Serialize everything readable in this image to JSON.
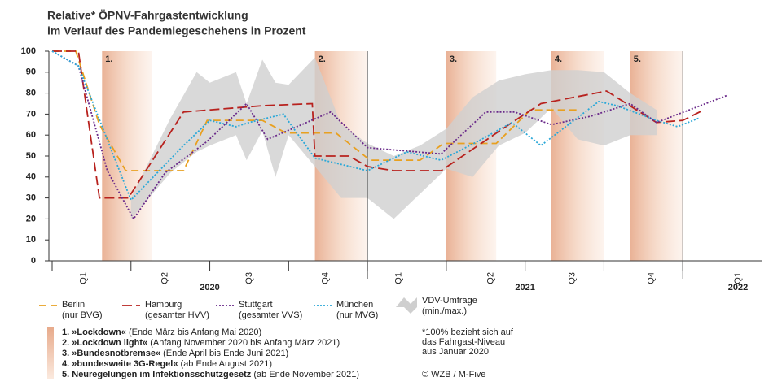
{
  "chart_data": {
    "type": "line",
    "title": "Relative* ÖPNV-Fahrgastentwicklung",
    "subtitle": "im Verlauf des Pandemiegeschehens in Prozent",
    "xlim": [
      0,
      27
    ],
    "ylim": [
      0,
      100
    ],
    "yticks": [
      0,
      10,
      20,
      30,
      40,
      50,
      60,
      70,
      80,
      90,
      100
    ],
    "grid": false,
    "quarter_boundaries": [
      0,
      3,
      6,
      9,
      12,
      15,
      18,
      21,
      24
    ],
    "year_boundaries": [
      12,
      24
    ],
    "quarters": [
      {
        "label": "Q1",
        "x": 1.2
      },
      {
        "label": "Q2",
        "x": 4.3
      },
      {
        "label": "Q3",
        "x": 7.5
      },
      {
        "label": "Q4",
        "x": 10.4
      },
      {
        "label": "Q1",
        "x": 13.2
      },
      {
        "label": "Q2",
        "x": 16.7
      },
      {
        "label": "Q3",
        "x": 19.8
      },
      {
        "label": "Q4",
        "x": 22.8
      },
      {
        "label": "Q1",
        "x": 26.1
      }
    ],
    "years": [
      {
        "label": "2020",
        "x": 6
      },
      {
        "label": "2021",
        "x": 18
      },
      {
        "label": "2022",
        "x": 26.1
      }
    ],
    "periods": [
      {
        "label": "1.",
        "name": "»Lockdown«",
        "desc": "(Ende März bis Anfang Mai 2020)",
        "start": 1.9,
        "end": 3.8
      },
      {
        "label": "2.",
        "name": "»Lockdown light«",
        "desc": "(Anfang November 2020 bis Anfang März 2021)",
        "start": 10,
        "end": 12
      },
      {
        "label": "3.",
        "name": "»Bundesnotbremse«",
        "desc": "(Ende April bis Ende Juni 2021)",
        "start": 15,
        "end": 16.9
      },
      {
        "label": "4.",
        "name": "»bundesweite 3G-Regel«",
        "desc": "(ab Ende August 2021)",
        "start": 19,
        "end": 21
      },
      {
        "label": "5.",
        "name": "Neuregelungen im Infektionsschutzgesetz",
        "desc": "(ab Ende November 2021)",
        "start": 22,
        "end": 24
      }
    ],
    "series": [
      {
        "name": "Berlin",
        "operator": "(nur BVG)",
        "color": "#e8a020",
        "dash": "9 5",
        "x": [
          0,
          0.9,
          1.8,
          2.8,
          5,
          5.9,
          7.3,
          8,
          8.9,
          10.8,
          12.1,
          14,
          14.9,
          16.9,
          18.2,
          20
        ],
        "values": [
          100,
          100,
          65,
          43,
          43,
          67,
          67,
          67,
          61,
          61,
          48,
          48,
          56,
          56,
          72,
          72
        ]
      },
      {
        "name": "Hamburg",
        "operator": "(gesamter HVV)",
        "color": "#b8221e",
        "dash": "12 5",
        "x": [
          0,
          1,
          1.8,
          2.9,
          5,
          8,
          9.9,
          10,
          11.3,
          12,
          13,
          14.8,
          17.5,
          18.6,
          21.1,
          23,
          24,
          24.8
        ],
        "values": [
          100,
          100,
          30,
          30,
          71,
          74,
          75,
          50,
          50,
          45,
          43,
          43,
          66,
          75,
          81,
          66,
          67,
          72
        ]
      },
      {
        "name": "Stuttgart",
        "operator": "(gesamter VVS)",
        "color": "#6a2a8a",
        "dash": "2 2",
        "x": [
          0,
          1,
          2.1,
          3.1,
          4.3,
          5.9,
          7.4,
          8.2,
          9.5,
          10.6,
          12,
          14.8,
          16.5,
          17.6,
          19,
          20.5,
          22,
          23,
          25.7
        ],
        "values": [
          100,
          93,
          43,
          20,
          42,
          57,
          75,
          58,
          65,
          71,
          54,
          51,
          71,
          71,
          65,
          69,
          75,
          66,
          79
        ]
      },
      {
        "name": "München",
        "operator": "(nur MVG)",
        "color": "#2aa8d8",
        "dash": "2 2",
        "x": [
          0,
          1,
          3,
          5,
          6,
          7,
          7.5,
          8.8,
          10,
          12,
          13.5,
          14.8,
          16.2,
          17.5,
          18.6,
          20.8,
          21.5,
          23,
          23.8,
          24.6
        ],
        "values": [
          100,
          93,
          29,
          55,
          67,
          64,
          66,
          70,
          49,
          43,
          52,
          48,
          57,
          66,
          55,
          76,
          74,
          67,
          64,
          68
        ]
      }
    ],
    "band": {
      "name": "VDV-Umfrage",
      "operator": "(min./max.)",
      "color": "#cfcfcf",
      "x": [
        3,
        4.5,
        5.5,
        6,
        7,
        7.4,
        8,
        8.5,
        9,
        10,
        11,
        12,
        13,
        14,
        15,
        16,
        17,
        18,
        19,
        20,
        21,
        22,
        23
      ],
      "max": [
        30,
        68,
        90,
        85,
        90,
        75,
        96,
        85,
        84,
        97,
        65,
        56,
        50,
        55,
        63,
        78,
        86,
        89,
        91,
        91,
        90,
        80,
        72
      ],
      "min": [
        20,
        42,
        52,
        55,
        60,
        48,
        62,
        40,
        60,
        45,
        30,
        30,
        20,
        32,
        44,
        40,
        55,
        61,
        73,
        58,
        55,
        60,
        60
      ]
    },
    "notes": [
      "*100% bezieht sich auf",
      "das Fahrgast-Niveau",
      "aus Januar 2020"
    ],
    "source": "© WZB / M-Five"
  }
}
